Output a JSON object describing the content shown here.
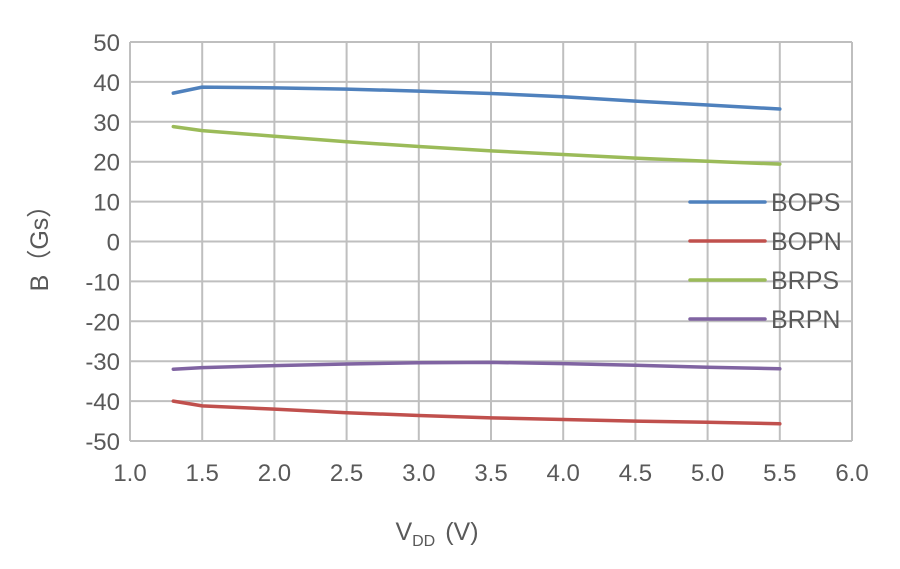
{
  "chart_data": {
    "type": "line",
    "title": "",
    "xlabel": "V",
    "xlabel_sub": "DD",
    "xlabel_unit": "(V)",
    "ylabel": "B（Gs）",
    "xlim": [
      1.0,
      6.0
    ],
    "ylim": [
      -50,
      50
    ],
    "xticks": [
      "1.0",
      "1.5",
      "2.0",
      "2.5",
      "3.0",
      "3.5",
      "4.0",
      "4.5",
      "5.0",
      "5.5",
      "6.0"
    ],
    "yticks": [
      "50",
      "40",
      "30",
      "20",
      "10",
      "0",
      "-10",
      "-20",
      "-30",
      "-40",
      "-50"
    ],
    "grid": true,
    "legend_position": "right",
    "x": [
      1.3,
      1.5,
      2.0,
      2.5,
      3.0,
      3.5,
      4.0,
      4.5,
      5.0,
      5.5
    ],
    "series": [
      {
        "name": "BOPS",
        "color": "#4F81BD",
        "values": [
          37.2,
          38.7,
          38.5,
          38.2,
          37.7,
          37.1,
          36.3,
          35.2,
          34.2,
          33.2
        ]
      },
      {
        "name": "BOPN",
        "color": "#C0504D",
        "values": [
          -40.0,
          -41.2,
          -42.0,
          -42.9,
          -43.6,
          -44.2,
          -44.6,
          -45.0,
          -45.3,
          -45.7
        ]
      },
      {
        "name": "BRPS",
        "color": "#9BBB59",
        "values": [
          28.8,
          27.8,
          26.4,
          25.0,
          23.8,
          22.7,
          21.8,
          20.9,
          20.1,
          19.4
        ]
      },
      {
        "name": "BRPN",
        "color": "#8064A2",
        "values": [
          -32.0,
          -31.6,
          -31.1,
          -30.7,
          -30.4,
          -30.3,
          -30.6,
          -31.0,
          -31.5,
          -31.9
        ]
      }
    ]
  }
}
